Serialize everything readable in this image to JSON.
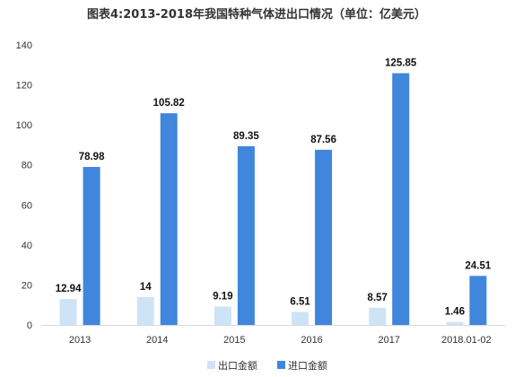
{
  "chart_data": {
    "type": "bar",
    "title": "图表4:2013-2018年我国特种气体进出口情况（单位：亿美元）",
    "categories": [
      "2013",
      "2014",
      "2015",
      "2016",
      "2017",
      "2018.01-02"
    ],
    "series": [
      {
        "name": "出口金额",
        "values": [
          12.94,
          14,
          9.19,
          6.51,
          8.57,
          1.46
        ],
        "value_labels": [
          "12.94",
          "14",
          "9.19",
          "6.51",
          "8.57",
          "1.46"
        ],
        "color": "#cfe3f7"
      },
      {
        "name": "进口金额",
        "values": [
          78.98,
          105.82,
          89.35,
          87.56,
          125.85,
          24.51
        ],
        "value_labels": [
          "78.98",
          "105.82",
          "89.35",
          "87.56",
          "125.85",
          "24.51"
        ],
        "color": "#3f86dc"
      }
    ],
    "ylim": [
      0,
      140
    ],
    "yticks": [
      "0",
      "20",
      "40",
      "60",
      "80",
      "100",
      "120",
      "140"
    ],
    "xlabel": "",
    "ylabel": "",
    "grid": false,
    "legend_position": "bottom"
  }
}
